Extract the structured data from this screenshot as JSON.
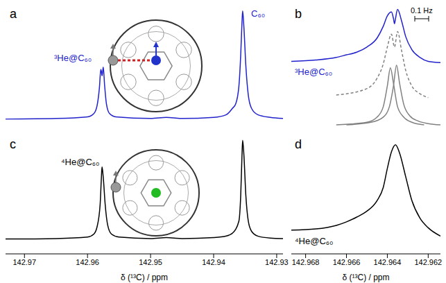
{
  "chart_data": [
    {
      "type": "line",
      "title": "a",
      "xlim": [
        142.973,
        142.929
      ],
      "ylim": [
        -15,
        105
      ],
      "tick_labels": false,
      "annotations": [
        "³He@C₆₀",
        "C₆₀"
      ],
      "series": [
        {
          "color": "#2222cc",
          "line_style": "solid",
          "x": [
            142.973,
            142.965,
            142.96,
            142.959,
            142.9585,
            142.9581,
            142.9579,
            142.9578,
            142.9577,
            142.9576,
            142.9575,
            142.9573,
            142.957,
            142.9565,
            142.9555,
            142.95,
            142.9475,
            142.945,
            142.94,
            142.938,
            142.937,
            142.9365,
            142.936,
            142.9357,
            142.9355,
            142.9354,
            142.9352,
            142.9349,
            142.9345,
            142.934,
            142.933,
            142.931,
            142.929
          ],
          "values": [
            0,
            0.5,
            2,
            5,
            12,
            30,
            46,
            44,
            40,
            44,
            48,
            32,
            14,
            5,
            2,
            0.5,
            1.5,
            0.5,
            1.5,
            4,
            10,
            14,
            30,
            60,
            90,
            100,
            85,
            50,
            22,
            10,
            4,
            1.5,
            0.5
          ]
        }
      ]
    },
    {
      "type": "line",
      "title": "b",
      "xlim": [
        142.9687,
        142.9614
      ],
      "ylim": [
        0,
        100
      ],
      "tick_labels": false,
      "annotations": [
        "³He@C₆₀",
        "0.1 Hz"
      ],
      "series": [
        {
          "color": "#2222cc",
          "line_style": "solid",
          "x": [
            142.9687,
            142.9675,
            142.9665,
            142.966,
            142.9655,
            142.965,
            142.9645,
            142.9642,
            142.964,
            142.9638,
            142.9637,
            142.96365,
            142.9636,
            142.9635,
            142.9633,
            142.9631,
            142.9628,
            142.9624,
            142.962,
            142.9614
          ],
          "values": [
            57,
            58,
            60,
            62,
            64,
            68,
            75,
            84,
            92,
            95,
            90,
            86,
            90,
            97,
            88,
            76,
            66,
            60,
            57,
            56
          ]
        },
        {
          "color": "#808080",
          "line_style": "dashed",
          "x": [
            142.9665,
            142.965,
            142.9645,
            142.9642,
            142.964,
            142.9638,
            142.96365,
            142.9635,
            142.9633,
            142.9631,
            142.9628,
            142.9624,
            142.962
          ],
          "values": [
            31,
            36,
            44,
            55,
            68,
            78,
            68,
            80,
            65,
            50,
            38,
            32,
            29
          ]
        },
        {
          "color": "#808080",
          "line_style": "solid",
          "x": [
            142.9665,
            142.965,
            142.9645,
            142.9642,
            142.964,
            142.96385,
            142.9637,
            142.9635,
            142.9632,
            142.9628,
            142.9622
          ],
          "values": [
            8,
            10,
            14,
            22,
            38,
            52,
            40,
            22,
            14,
            10,
            8
          ]
        },
        {
          "color": "#808080",
          "line_style": "solid",
          "x": [
            142.966,
            142.9648,
            142.9642,
            142.9639,
            142.9637,
            142.96355,
            142.9634,
            142.9632,
            142.9629,
            142.9625,
            142.962,
            142.9614
          ],
          "values": [
            8,
            10,
            14,
            22,
            38,
            54,
            40,
            24,
            15,
            11,
            9,
            8
          ]
        }
      ]
    },
    {
      "type": "line",
      "title": "c",
      "xlabel": "δ (¹³C) / ppm",
      "xlim": [
        142.973,
        142.929
      ],
      "xticks": [
        142.97,
        142.96,
        142.95,
        142.94,
        142.93
      ],
      "ylim": [
        -15,
        105
      ],
      "tick_labels": "x",
      "annotations": [
        "⁴He@C₆₀"
      ],
      "series": [
        {
          "color": "#000000",
          "line_style": "solid",
          "x": [
            142.973,
            142.965,
            142.96,
            142.959,
            142.9585,
            142.958,
            142.9578,
            142.9577,
            142.9575,
            142.9572,
            142.9568,
            142.9562,
            142.955,
            142.95,
            142.9475,
            142.945,
            142.94,
            142.938,
            142.937,
            142.936,
            142.9357,
            142.9355,
            142.9354,
            142.9352,
            142.9349,
            142.9345,
            142.934,
            142.933,
            142.931,
            142.929
          ],
          "values": [
            0,
            0.5,
            2,
            5,
            12,
            35,
            62,
            73,
            62,
            35,
            14,
            5,
            2,
            0.5,
            1.5,
            0.5,
            1.5,
            3,
            6,
            18,
            45,
            85,
            100,
            85,
            45,
            18,
            8,
            3,
            1,
            0.5
          ]
        }
      ]
    },
    {
      "type": "line",
      "title": "d",
      "xlabel": "δ (¹³C) / ppm",
      "xlim": [
        142.9687,
        142.9614
      ],
      "xticks": [
        142.968,
        142.966,
        142.964,
        142.962
      ],
      "ylim": [
        0,
        100
      ],
      "tick_labels": "x",
      "annotations": [
        "⁴He@C₆₀"
      ],
      "series": [
        {
          "color": "#000000",
          "line_style": "solid",
          "x": [
            142.9687,
            142.9675,
            142.9665,
            142.966,
            142.9655,
            142.965,
            142.9645,
            142.9642,
            142.964,
            142.9638,
            142.9636,
            142.9634,
            142.9631,
            142.9628,
            142.9624,
            142.962,
            142.9614
          ],
          "values": [
            20,
            21,
            24,
            27,
            31,
            36,
            45,
            56,
            72,
            86,
            92,
            85,
            65,
            45,
            30,
            22,
            15
          ]
        }
      ]
    }
  ]
}
